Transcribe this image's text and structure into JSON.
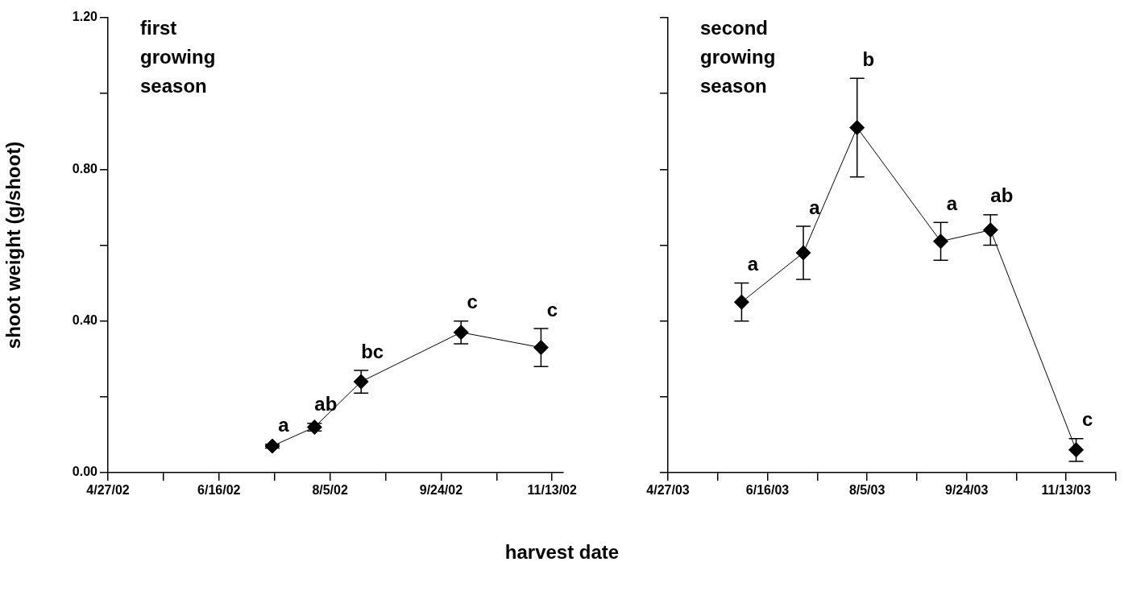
{
  "chart_data": [
    {
      "type": "line",
      "title": "first growing season",
      "xlabel": "harvest date",
      "ylabel": "shoot weight (g/shoot)",
      "marker": "diamond",
      "x": [
        "2002-07-10",
        "2002-07-29",
        "2002-08-19",
        "2002-10-03",
        "2002-11-08"
      ],
      "series": [
        {
          "color": "#000000",
          "values": [
            0.07,
            0.12,
            0.24,
            0.37,
            0.33
          ],
          "errors": [
            0.005,
            0.01,
            0.03,
            0.03,
            0.05
          ]
        }
      ],
      "xlim": [
        "2002-04-27",
        "2002-11-18"
      ],
      "xticks": [
        {
          "value": "2002-04-27",
          "label": "4/27/02"
        },
        {
          "value": "2002-05-22",
          "label": null
        },
        {
          "value": "2002-06-16",
          "label": "6/16/02"
        },
        {
          "value": "2002-07-11",
          "label": null
        },
        {
          "value": "2002-08-05",
          "label": "8/5/02"
        },
        {
          "value": "2002-08-30",
          "label": null
        },
        {
          "value": "2002-09-24",
          "label": "9/24/02"
        },
        {
          "value": "2002-10-19",
          "label": null
        },
        {
          "value": "2002-11-13",
          "label": "11/13/02"
        }
      ],
      "ylim": [
        0,
        1.2
      ],
      "yticks": [
        {
          "value": 0,
          "label": "0.00"
        },
        {
          "value": 0.2,
          "label": null
        },
        {
          "value": 0.4,
          "label": "0.40"
        },
        {
          "value": 0.6,
          "label": null
        },
        {
          "value": 0.8,
          "label": "0.80"
        },
        {
          "value": 1.0,
          "label": null
        },
        {
          "value": 1.2,
          "label": "1.20"
        }
      ],
      "annotations": [
        "a",
        "ab",
        "bc",
        "c",
        "c"
      ]
    },
    {
      "type": "line",
      "title": "second growing season",
      "marker": "diamond",
      "tick_labels": "x",
      "x": [
        "2003-06-03",
        "2003-07-04",
        "2003-07-31",
        "2003-09-11",
        "2003-10-06",
        "2003-11-18"
      ],
      "series": [
        {
          "color": "#000000",
          "values": [
            0.45,
            0.58,
            0.91,
            0.61,
            0.64,
            0.06
          ],
          "errors": [
            0.05,
            0.07,
            0.13,
            0.05,
            0.04,
            0.03
          ]
        }
      ],
      "xlim": [
        "2003-04-27",
        "2003-12-08"
      ],
      "yticks": [
        {
          "value": 0,
          "label": null
        },
        {
          "value": 0.2,
          "label": null
        },
        {
          "value": 0.4,
          "label": null
        },
        {
          "value": 0.6,
          "label": null
        },
        {
          "value": 0.8,
          "label": null
        },
        {
          "value": 1.0,
          "label": null
        },
        {
          "value": 1.2,
          "label": null
        }
      ],
      "xticks": [
        {
          "value": "2003-04-27",
          "label": "4/27/03"
        },
        {
          "value": "2003-05-22",
          "label": null
        },
        {
          "value": "2003-06-16",
          "label": "6/16/03"
        },
        {
          "value": "2003-07-11",
          "label": null
        },
        {
          "value": "2003-08-05",
          "label": "8/5/03"
        },
        {
          "value": "2003-08-30",
          "label": null
        },
        {
          "value": "2003-09-24",
          "label": "9/24/03"
        },
        {
          "value": "2003-10-19",
          "label": null
        },
        {
          "value": "2003-11-13",
          "label": "11/13/03"
        },
        {
          "value": "2003-12-08",
          "label": null
        }
      ],
      "ylim": [
        0,
        1.2
      ],
      "annotations": [
        "a",
        "a",
        "b",
        "a",
        "ab",
        "c"
      ]
    }
  ]
}
